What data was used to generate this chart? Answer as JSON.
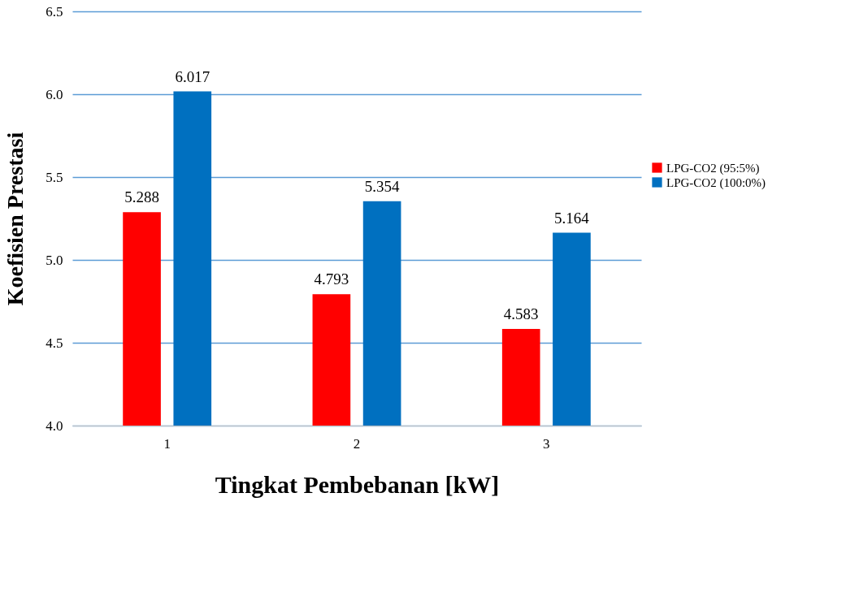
{
  "chart_data": {
    "type": "bar",
    "xlabel": "Tingkat Pembebanan [kW]",
    "ylabel": "Koefisien Prestasi",
    "categories": [
      "1",
      "2",
      "3"
    ],
    "series": [
      {
        "name": "LPG-CO2 (95:5%)",
        "color": "#ff0000",
        "values": [
          5.288,
          4.793,
          4.583
        ]
      },
      {
        "name": "LPG-CO2  (100:0%)",
        "color": "#0070c0",
        "values": [
          6.017,
          5.354,
          5.164
        ]
      }
    ],
    "ylim": [
      4.0,
      6.5
    ],
    "yticks": [
      {
        "value": 4,
        "label": "4.0"
      },
      4.5,
      {
        "value": 5,
        "label": "5.0"
      },
      5.5,
      {
        "value": 6,
        "label": "6.0"
      },
      6.5
    ],
    "grid": "y",
    "legend": "right",
    "data_labels": true
  }
}
